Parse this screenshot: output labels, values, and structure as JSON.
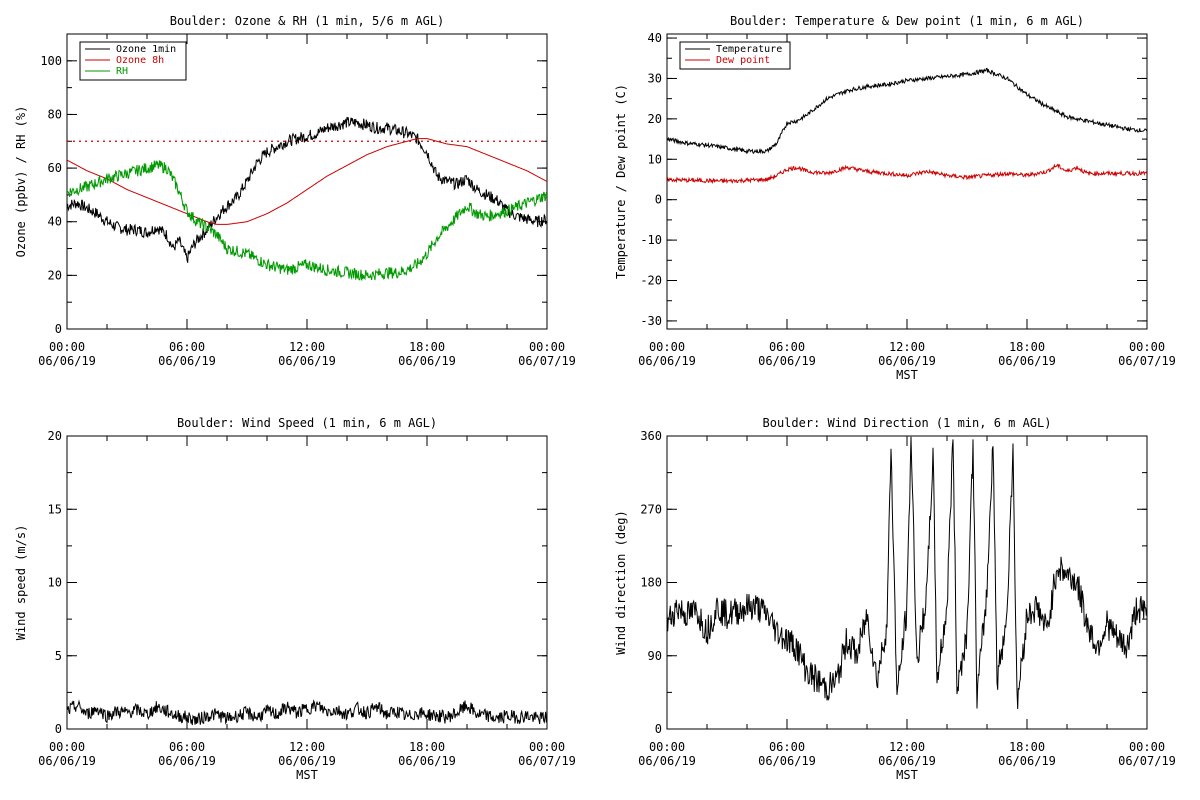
{
  "chart_data": [
    {
      "type": "line",
      "title": "Boulder: Ozone & RH (1 min, 5/6 m AGL)",
      "xlabel": "",
      "ylabel": "Ozone (ppbv) / RH (%)",
      "xlim": [
        0,
        24
      ],
      "ylim": [
        0,
        110
      ],
      "yticks": [
        0,
        20,
        40,
        60,
        80,
        100
      ],
      "xticks": [
        {
          "time": "00:00",
          "date": "06/06/19"
        },
        {
          "time": "06:00",
          "date": "06/06/19"
        },
        {
          "time": "12:00",
          "date": "06/06/19"
        },
        {
          "time": "18:00",
          "date": "06/06/19"
        },
        {
          "time": "00:00",
          "date": "06/07/19"
        }
      ],
      "legend": "top-left",
      "reference_line": {
        "y": 70,
        "color": "#cc0000",
        "style": "dotted"
      },
      "series": [
        {
          "name": "Ozone 1min",
          "color": "#000000",
          "x": [
            0,
            0.5,
            1,
            1.5,
            2,
            2.5,
            3,
            3.5,
            4,
            4.5,
            5,
            5.3,
            5.6,
            6,
            6.3,
            6.6,
            7,
            7.5,
            8,
            8.5,
            9,
            9.5,
            10,
            10.5,
            11,
            11.5,
            12,
            12.5,
            13,
            13.5,
            14,
            14.5,
            15,
            15.5,
            16,
            16.5,
            17,
            17.5,
            18,
            18.5,
            19,
            19.5,
            20,
            20.5,
            21,
            21.5,
            22,
            22.5,
            23,
            23.5,
            24
          ],
          "y": [
            46,
            47,
            45,
            43,
            40,
            38,
            37,
            37,
            36,
            38,
            35,
            30,
            33,
            26,
            31,
            34,
            37,
            42,
            46,
            49,
            55,
            62,
            66,
            68,
            70,
            71,
            72,
            73,
            75,
            76,
            77,
            77,
            76,
            75,
            75,
            74,
            73,
            71,
            66,
            57,
            55,
            54,
            56,
            52,
            50,
            48,
            44,
            42,
            41,
            40,
            41
          ]
        },
        {
          "name": "Ozone 8h",
          "color": "#cc0000",
          "x": [
            0,
            1,
            2,
            3,
            4,
            5,
            6,
            7,
            7.5,
            8,
            9,
            10,
            11,
            12,
            13,
            14,
            15,
            16,
            17,
            17.5,
            18,
            19,
            20,
            21,
            22,
            23,
            24
          ],
          "y": [
            63,
            59,
            56,
            52,
            49,
            46,
            43,
            40,
            39,
            39,
            40,
            43,
            47,
            52,
            57,
            61,
            65,
            68,
            70,
            71,
            71,
            69,
            68,
            65,
            62,
            59,
            55
          ]
        },
        {
          "name": "RH",
          "color": "#009900",
          "x": [
            0,
            1,
            2,
            3,
            4,
            4.5,
            5,
            5.5,
            6,
            6.5,
            7,
            7.5,
            8,
            8.5,
            9,
            9.5,
            10,
            11,
            12,
            13,
            14,
            15,
            16,
            16.5,
            17,
            17.5,
            18,
            18.5,
            19,
            19.5,
            20,
            20.5,
            21,
            22,
            23,
            24
          ],
          "y": [
            51,
            53,
            56,
            58,
            60,
            61,
            60,
            53,
            44,
            40,
            38,
            35,
            30,
            29,
            28,
            26,
            24,
            22,
            24,
            22,
            21,
            20,
            21,
            21,
            22,
            24,
            28,
            34,
            38,
            42,
            46,
            43,
            42,
            44,
            47,
            50
          ]
        }
      ]
    },
    {
      "type": "line",
      "title": "Boulder: Temperature & Dew point (1 min, 6 m AGL)",
      "xlabel": "MST",
      "ylabel": "Temperature / Dew point (C)",
      "xlim": [
        0,
        24
      ],
      "ylim": [
        -32,
        41
      ],
      "yticks": [
        -30,
        -20,
        -10,
        0,
        10,
        20,
        30,
        40
      ],
      "xticks": [
        {
          "time": "00:00",
          "date": "06/06/19"
        },
        {
          "time": "06:00",
          "date": "06/06/19"
        },
        {
          "time": "12:00",
          "date": "06/06/19"
        },
        {
          "time": "18:00",
          "date": "06/06/19"
        },
        {
          "time": "00:00",
          "date": "06/07/19"
        }
      ],
      "legend": "top-left",
      "series": [
        {
          "name": "Temperature",
          "color": "#000000",
          "x": [
            0,
            1,
            2,
            3,
            4,
            5,
            5.5,
            6,
            6.5,
            7,
            7.5,
            8,
            9,
            10,
            11,
            12,
            13,
            14,
            15,
            15.5,
            16,
            16.5,
            17,
            18,
            19,
            20,
            21,
            22,
            23,
            24
          ],
          "y": [
            15,
            14,
            13.5,
            12.8,
            12,
            12,
            14,
            19,
            19.5,
            21,
            23,
            25,
            27,
            28,
            28.5,
            29.5,
            30,
            30.5,
            31,
            31.5,
            32,
            31,
            30,
            26,
            23,
            20.5,
            19.5,
            18.5,
            17.5,
            17
          ]
        },
        {
          "name": "Dew point",
          "color": "#cc0000",
          "x": [
            0,
            1,
            2,
            3,
            4,
            5,
            5.5,
            6,
            6.5,
            7,
            8,
            9,
            10,
            11,
            12,
            13,
            14,
            15,
            16,
            17,
            18,
            19,
            19.5,
            20,
            20.5,
            21,
            22,
            23,
            24
          ],
          "y": [
            5,
            4.8,
            4.7,
            4.6,
            4.8,
            5,
            6,
            7.5,
            8,
            7,
            6.5,
            8,
            7,
            6.5,
            6,
            7,
            6,
            5.5,
            6,
            6.5,
            6,
            7,
            8.5,
            7,
            8,
            6.5,
            6.5,
            6.5,
            6.5
          ]
        }
      ]
    },
    {
      "type": "line",
      "title": "Boulder: Wind Speed (1 min, 6 m AGL)",
      "xlabel": "MST",
      "ylabel": "Wind speed (m/s)",
      "xlim": [
        0,
        24
      ],
      "ylim": [
        0,
        20
      ],
      "yticks": [
        0,
        5,
        10,
        15,
        20
      ],
      "xticks": [
        {
          "time": "00:00",
          "date": "06/06/19"
        },
        {
          "time": "06:00",
          "date": "06/06/19"
        },
        {
          "time": "12:00",
          "date": "06/06/19"
        },
        {
          "time": "18:00",
          "date": "06/06/19"
        },
        {
          "time": "00:00",
          "date": "06/07/19"
        }
      ],
      "series": [
        {
          "name": "",
          "color": "#000000",
          "x": [
            0,
            0.5,
            1,
            1.5,
            2,
            2.5,
            3,
            3.5,
            4,
            4.5,
            5,
            5.5,
            6,
            6.5,
            7,
            7.5,
            8,
            8.5,
            9,
            9.5,
            10,
            10.5,
            11,
            11.5,
            12,
            12.5,
            13,
            13.5,
            14,
            14.5,
            15,
            15.5,
            16,
            16.5,
            17,
            17.5,
            18,
            18.5,
            19,
            19.5,
            20,
            20.5,
            21,
            21.5,
            22,
            22.5,
            23,
            23.5,
            24
          ],
          "y": [
            1.2,
            1.6,
            1.0,
            1.4,
            0.9,
            1.2,
            1.1,
            1.3,
            1.0,
            1.5,
            1.2,
            0.9,
            0.8,
            0.6,
            0.9,
            1.0,
            0.7,
            0.9,
            1.1,
            0.8,
            1.2,
            1.0,
            1.5,
            1.1,
            1.4,
            1.6,
            1.2,
            1.3,
            1.0,
            1.4,
            1.1,
            1.5,
            1.0,
            1.2,
            0.8,
            1.1,
            1.0,
            0.9,
            0.8,
            1.1,
            1.6,
            1.0,
            0.9,
            0.7,
            0.9,
            0.8,
            0.9,
            0.7,
            0.8
          ]
        }
      ]
    },
    {
      "type": "line",
      "title": "Boulder: Wind Direction (1 min, 6 m AGL)",
      "xlabel": "MST",
      "ylabel": "Wind direction (deg)",
      "xlim": [
        0,
        24
      ],
      "ylim": [
        0,
        360
      ],
      "yticks": [
        0,
        90,
        180,
        270,
        360
      ],
      "xticks": [
        {
          "time": "00:00",
          "date": "06/06/19"
        },
        {
          "time": "06:00",
          "date": "06/06/19"
        },
        {
          "time": "12:00",
          "date": "06/06/19"
        },
        {
          "time": "18:00",
          "date": "06/06/19"
        },
        {
          "time": "00:00",
          "date": "06/07/19"
        }
      ],
      "series": [
        {
          "name": "",
          "color": "#000000",
          "x": [
            0,
            0.5,
            1,
            1.5,
            2,
            2.5,
            3,
            3.5,
            4,
            4.5,
            5,
            5.5,
            6,
            6.5,
            7,
            7.5,
            8,
            8.5,
            9,
            9.5,
            10,
            10.5,
            11,
            11.2,
            11.5,
            12,
            12.2,
            12.5,
            13,
            13.3,
            13.5,
            14,
            14.3,
            14.5,
            15,
            15.3,
            15.5,
            16,
            16.3,
            16.5,
            17,
            17.3,
            17.5,
            18,
            18.5,
            19,
            19.5,
            20,
            20.5,
            21,
            21.5,
            22,
            22.5,
            23,
            23.5,
            24
          ],
          "y": [
            130,
            150,
            140,
            145,
            120,
            150,
            140,
            145,
            150,
            150,
            140,
            120,
            110,
            100,
            70,
            60,
            50,
            60,
            110,
            90,
            140,
            60,
            130,
            350,
            40,
            150,
            360,
            80,
            170,
            340,
            60,
            150,
            360,
            50,
            120,
            350,
            40,
            170,
            360,
            60,
            140,
            350,
            30,
            140,
            150,
            120,
            200,
            190,
            180,
            130,
            100,
            130,
            110,
            100,
            150,
            140
          ]
        }
      ]
    }
  ]
}
